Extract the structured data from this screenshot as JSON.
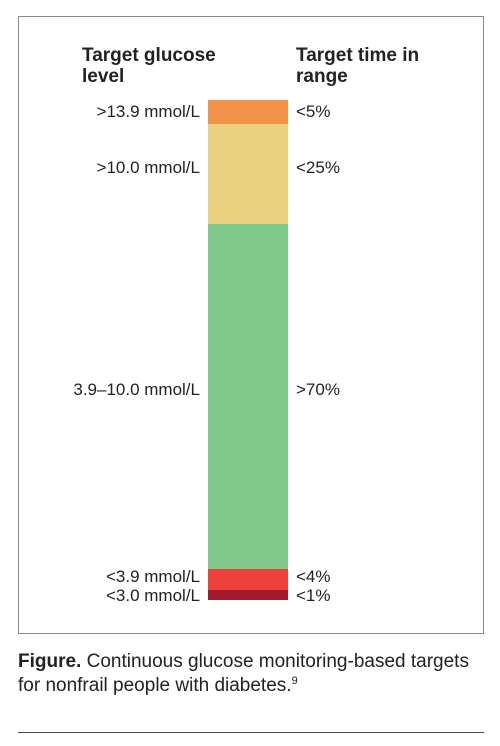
{
  "headers": {
    "left": "Target glucose level",
    "right": "Target time in range"
  },
  "bands": [
    {
      "level": ">13.9 mmol/L",
      "time": "<5%",
      "color": "#f5924a"
    },
    {
      "level": ">10.0 mmol/L",
      "time": "<25%",
      "color": "#e8d27f"
    },
    {
      "level": "3.9–10.0 mmol/L",
      "time": ">70%",
      "color": "#7fc98a"
    },
    {
      "level": "<3.9 mmol/L",
      "time": "<4%",
      "color": "#ec4139"
    },
    {
      "level": "<3.0 mmol/L",
      "time": "<1%",
      "color": "#a3192c"
    }
  ],
  "caption": {
    "lead": "Figure.",
    "text": " Continuous glucose monitoring-based targets for nonfrail people with diabetes.",
    "ref": "9"
  }
}
